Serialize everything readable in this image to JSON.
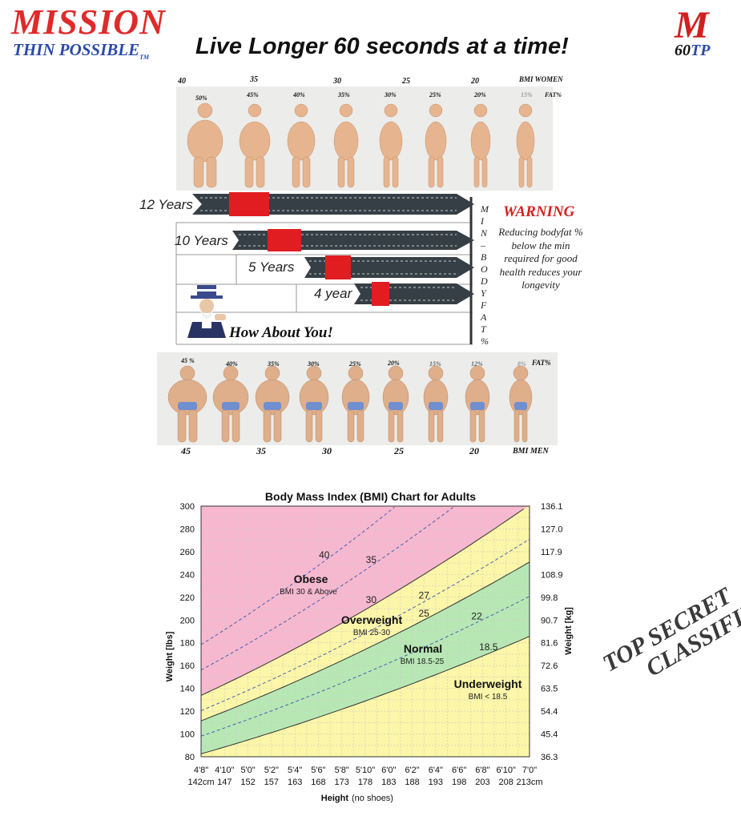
{
  "header": {
    "brand_line1": "MISSION",
    "brand_line2": "THIN POSSIBLE",
    "brand_tm": "TM",
    "headline": "Live Longer 60 seconds at a time!",
    "badge_m": "M",
    "badge_num": "60",
    "badge_tp": "TP"
  },
  "women_row": {
    "bmi_label": "BMI WOMEN",
    "fat_label": "FAT%",
    "bmi_values": [
      "40",
      "35",
      "30",
      "25",
      "20"
    ],
    "fat_values": [
      "50%",
      "45%",
      "40%",
      "35%",
      "30%",
      "25%",
      "20%",
      "15%"
    ]
  },
  "men_row": {
    "bmi_label": "BMI MEN",
    "fat_label": "FAT%",
    "bmi_values": [
      "45",
      "35",
      "30",
      "25",
      "20"
    ],
    "fat_values": [
      "45 %",
      "40%",
      "35%",
      "30%",
      "25%",
      "20%",
      "15%",
      "12%",
      "8%"
    ]
  },
  "longevity": {
    "years": [
      "12 Years",
      "10 Years",
      "5 Years",
      "4 year"
    ],
    "vertical_label": [
      "M",
      "I",
      "N",
      "–",
      "B",
      "O",
      "D",
      "Y",
      "F",
      "A",
      "T",
      "%"
    ],
    "warning_title": "WARNING",
    "warning_body": "Reducing bodyfat % below the min required for good health reduces your longevity",
    "call_to_action": "How About You!"
  },
  "bmi_chart": {
    "title": "Body Mass Index (BMI) Chart for Adults",
    "ylabel_left": "Weight [lbs]",
    "ylabel_right": "Weight [kg]",
    "xlabel": "Height",
    "xlabel_note": "(no shoes)",
    "zones": {
      "obese": {
        "title": "Obese",
        "sub": "BMI 30 & Above"
      },
      "overweight": {
        "title": "Overweight",
        "sub": "BMI 25-30"
      },
      "normal": {
        "title": "Normal",
        "sub": "BMI 18.5-25"
      },
      "underweight": {
        "title": "Underweight",
        "sub": "BMI < 18.5"
      }
    }
  },
  "chart_data": {
    "type": "area",
    "title": "Body Mass Index (BMI) Chart for Adults",
    "xlabel": "Height (no shoes)",
    "ylabel": "Weight [lbs]",
    "ylabel_right": "Weight [kg]",
    "x_ticks_ft": [
      "4'8\"",
      "4'10\"",
      "5'0\"",
      "5'2\"",
      "5'4\"",
      "5'6\"",
      "5'8\"",
      "5'10\"",
      "6'0\"",
      "6'2\"",
      "6'4\"",
      "6'6\"",
      "6'8\"",
      "6'10\"",
      "7'0\""
    ],
    "x_ticks_cm": [
      "142cm",
      "147",
      "152",
      "157",
      "163",
      "168",
      "173",
      "178",
      "183",
      "188",
      "193",
      "198",
      "203",
      "208",
      "213cm"
    ],
    "x_inches": [
      56,
      58,
      60,
      62,
      64,
      66,
      68,
      70,
      72,
      74,
      76,
      78,
      80,
      82,
      84
    ],
    "y_ticks_lbs": [
      80,
      100,
      120,
      140,
      160,
      180,
      200,
      220,
      240,
      260,
      280,
      300
    ],
    "y_ticks_kg": [
      "36.3",
      "45.4",
      "54.4",
      "63.5",
      "72.6",
      "81.6",
      "90.7",
      "99.8",
      "108.9",
      "117.9",
      "127.0",
      "136.1"
    ],
    "ylim": [
      80,
      300
    ],
    "xlim": [
      56,
      84
    ],
    "boundaries": [
      {
        "bmi": 18.5,
        "label": "18.5",
        "style": "solid"
      },
      {
        "bmi": 25,
        "label": "25",
        "style": "solid"
      },
      {
        "bmi": 30,
        "label": "30",
        "style": "solid"
      }
    ],
    "reference_lines": [
      {
        "bmi": 22,
        "label": "22"
      },
      {
        "bmi": 27,
        "label": "27"
      },
      {
        "bmi": 35,
        "label": "35"
      },
      {
        "bmi": 40,
        "label": "40"
      }
    ],
    "zone_colors": {
      "underweight": "#fbf6a8",
      "normal": "#b7e8b4",
      "overweight": "#fbf6a8",
      "obese": "#f7b8cf"
    },
    "grid": true
  },
  "stamp": {
    "line1": "TOP SECRET",
    "line2": "CLASSIFIED"
  }
}
